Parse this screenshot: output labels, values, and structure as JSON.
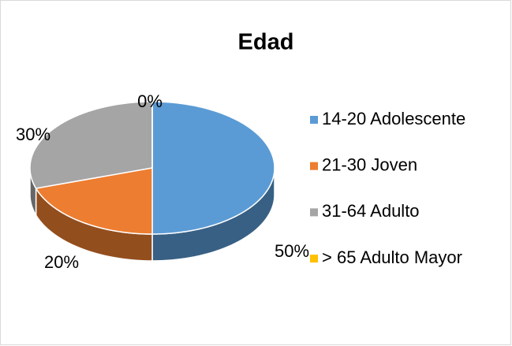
{
  "chart_data": {
    "type": "pie",
    "title": "Edad",
    "categories": [
      "14-20 Adolescente",
      "21-30 Joven",
      "31-64 Adulto",
      "> 65 Adulto Mayor"
    ],
    "values": [
      50,
      20,
      30,
      0
    ],
    "value_labels": [
      "50%",
      "20%",
      "30%",
      "0%"
    ],
    "colors": [
      "#5b9bd5",
      "#ed7d31",
      "#a5a5a5",
      "#ffc000"
    ]
  }
}
